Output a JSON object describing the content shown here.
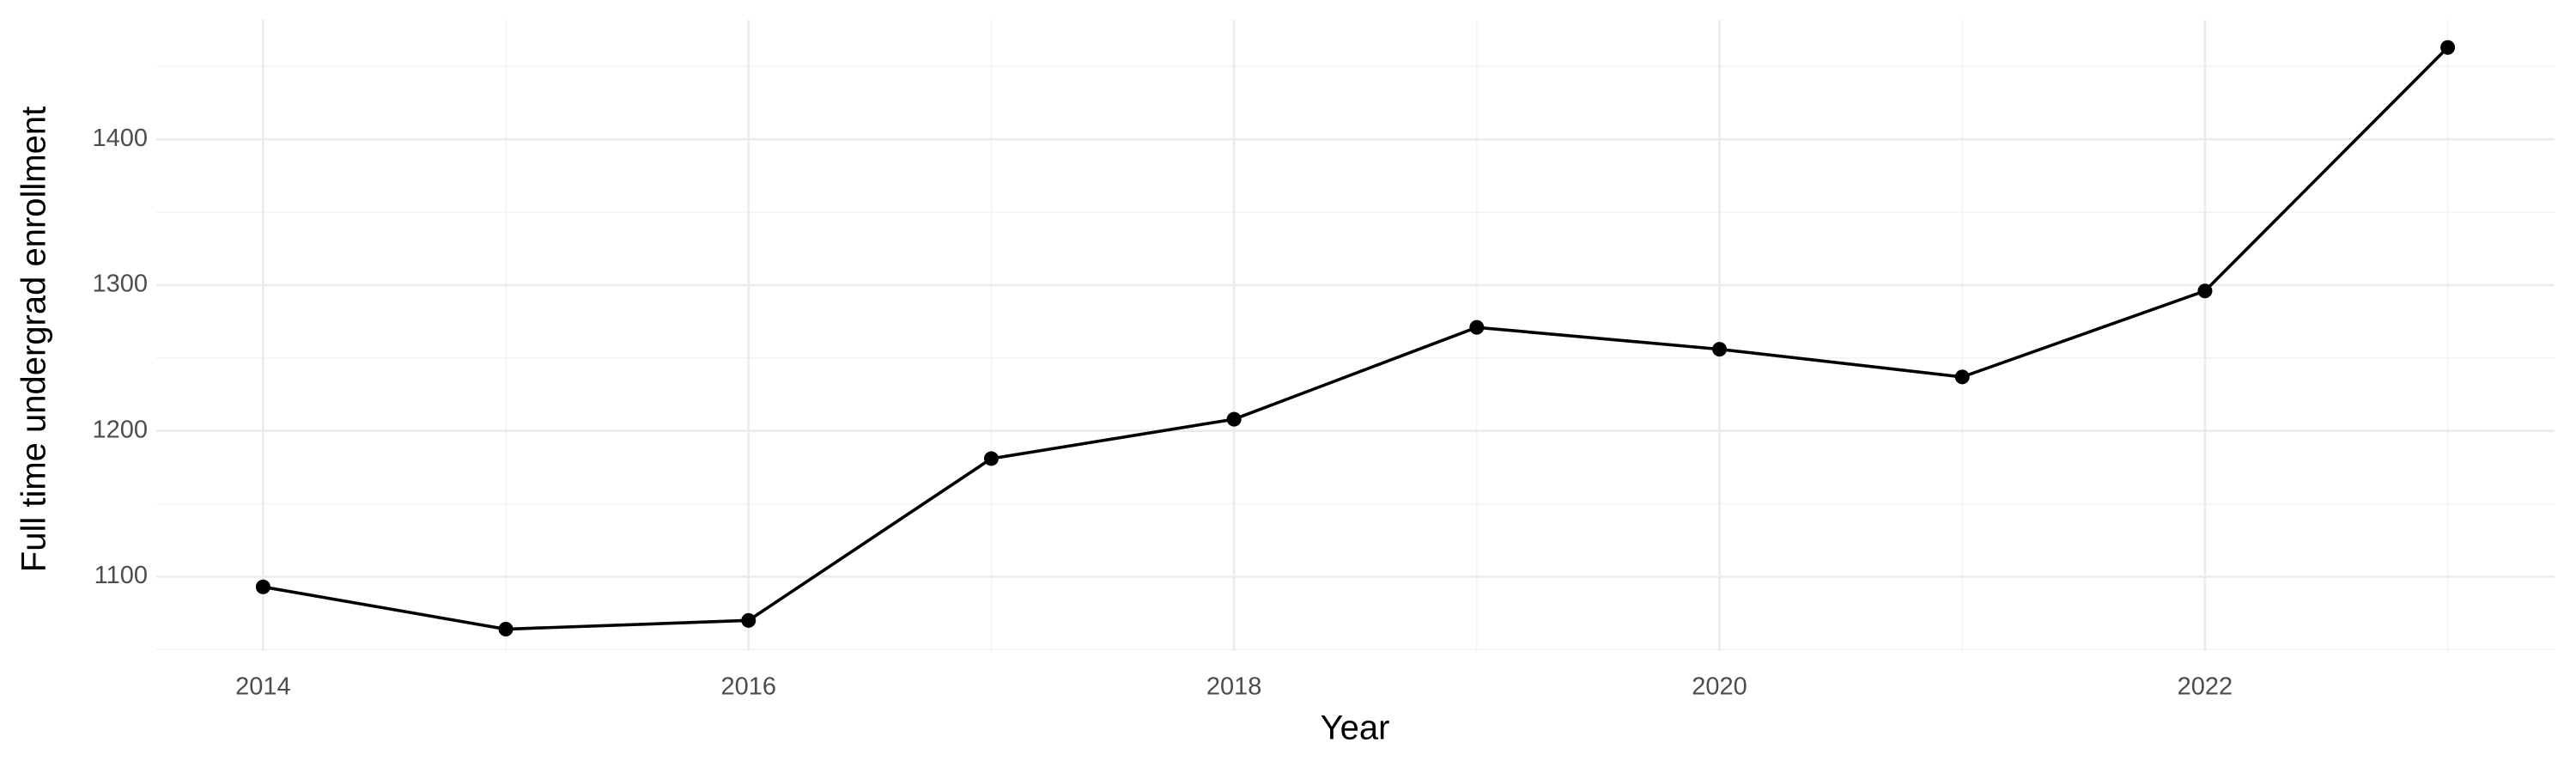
{
  "chart_data": {
    "type": "line",
    "x_label": "Year",
    "y_label": "Full time undergrad enrollment",
    "x": [
      2014,
      2015,
      2016,
      2017,
      2018,
      2019,
      2020,
      2021,
      2022,
      2023
    ],
    "series": [
      {
        "color": "#000000",
        "values": [
          1093,
          1064,
          1070,
          1181,
          1208,
          1271,
          1256,
          1237,
          1296,
          1463
        ]
      }
    ],
    "xlim": [
      2013.56,
      2023.44
    ],
    "xticks": [
      2014,
      2016,
      2018,
      2020,
      2022
    ],
    "ylim": [
      1049,
      1482
    ],
    "yticks": [
      1100,
      1200,
      1300,
      1400
    ],
    "grid": true
  }
}
